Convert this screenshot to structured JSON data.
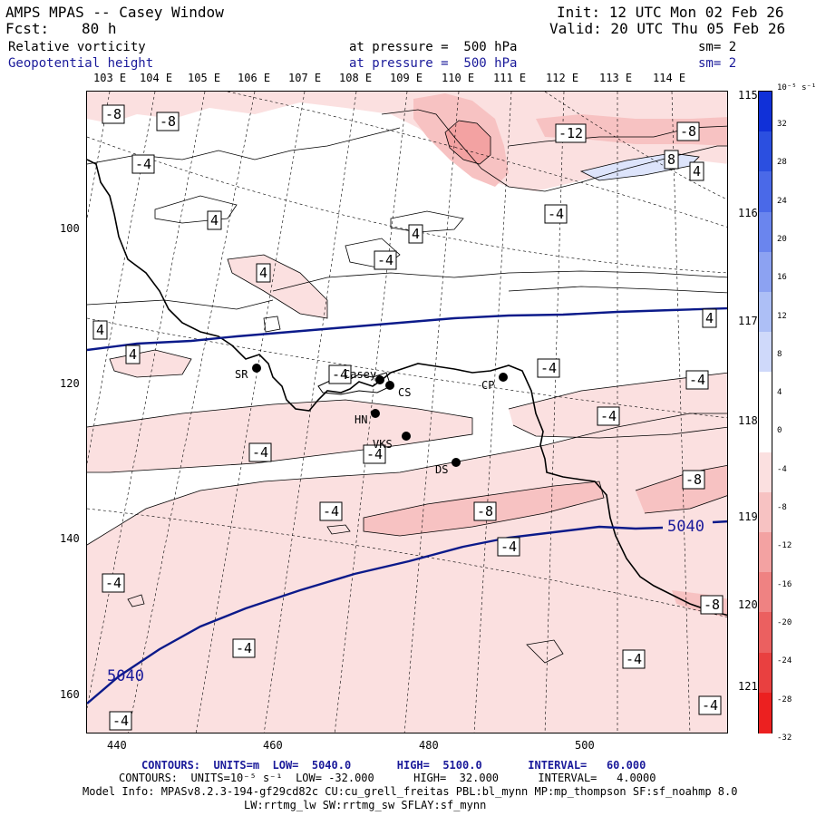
{
  "header": {
    "title": "AMPS MPAS -- Casey Window",
    "init": "Init: 12 UTC Mon 02 Feb 26",
    "fcst_label": "Fcst:",
    "fcst_value": "80 h",
    "valid": "Valid: 20 UTC Thu 05 Feb 26",
    "field1_name": "Relative vorticity",
    "field1_level": "at pressure =  500 hPa",
    "field1_sm": "sm= 2",
    "field2_name": "Geopotential height",
    "field2_level": "at pressure =  500 hPa",
    "field2_sm": "sm= 2"
  },
  "axes": {
    "top_lon_labels": [
      "103 E",
      "104 E",
      "105 E",
      "106 E",
      "107 E",
      "108 E",
      "109 E",
      "110 E",
      "111 E",
      "112 E",
      "113 E",
      "114 E"
    ],
    "right_lon_labels": [
      "115 E",
      "116 E",
      "117 E",
      "118 E",
      "119 E",
      "120 E",
      "121 E"
    ],
    "left_ticks": [
      "100",
      "120",
      "140",
      "160"
    ],
    "bottom_ticks": [
      "440",
      "460",
      "480",
      "500"
    ]
  },
  "colorbar": {
    "unit": "10⁻⁵ s⁻¹",
    "labels": [
      "32",
      "28",
      "24",
      "20",
      "16",
      "12",
      "8",
      "4",
      "0",
      "-4",
      "-8",
      "-12",
      "-16",
      "-20",
      "-24",
      "-28",
      "-32"
    ],
    "colors": [
      "#1030d8",
      "#2b4fe0",
      "#4a69e8",
      "#6a85ee",
      "#8ca2f2",
      "#adbff6",
      "#cfd9fa",
      "#ffffff",
      "#ffffff",
      "#fbe0e0",
      "#f7c2c2",
      "#f3a2a2",
      "#ef8282",
      "#eb6060",
      "#e94040",
      "#ec2020"
    ]
  },
  "stations": [
    {
      "code": "SR"
    },
    {
      "code": "Casey"
    },
    {
      "code": "CS"
    },
    {
      "code": "CP"
    },
    {
      "code": "HN"
    },
    {
      "code": "VKS"
    },
    {
      "code": "DS"
    }
  ],
  "contour_labels": {
    "vort": [
      "-8",
      "-8",
      "-4",
      "-12",
      "-8",
      "8",
      "-4",
      "4",
      "4",
      "-4",
      "4",
      "4",
      "4",
      "-4",
      "-4",
      "4",
      "4",
      "-4",
      "-4",
      "-4",
      "-4",
      "-8",
      "-8",
      "-4",
      "-4",
      "-4",
      "-4",
      "-4",
      "-8",
      "-4",
      "-4",
      "-4"
    ],
    "height": [
      "5040",
      "5040"
    ]
  },
  "footer": {
    "line1": "CONTOURS:  UNITS=m  LOW=  5040.0       HIGH=  5100.0       INTERVAL=   60.000",
    "line2": "CONTOURS:  UNITS=10⁻⁵ s⁻¹  LOW= -32.000      HIGH=  32.000      INTERVAL=   4.0000",
    "line3": "Model Info: MPASv8.2.3-194-gf29cd82c CU:cu_grell_freitas PBL:bl_mynn MP:mp_thompson SF:sf_noahmp 8.0",
    "line4": "LW:rrtmg_lw SW:rrtmg_sw SFLAY:sf_mynn"
  }
}
